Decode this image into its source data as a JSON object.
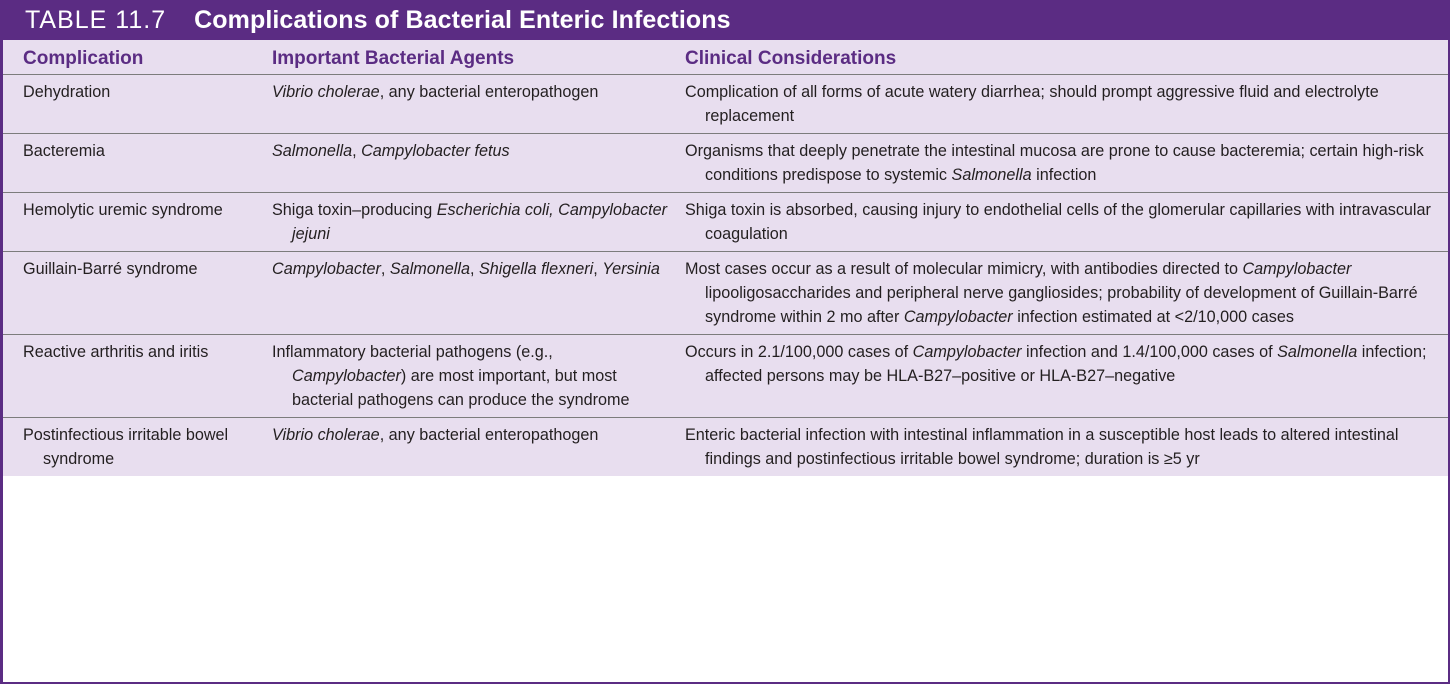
{
  "table": {
    "label": "TABLE 11.7",
    "title": "Complications of Bacterial Enteric Infections",
    "colors": {
      "accent": "#5b2c83",
      "row_bg": "#e8deef",
      "rule": "#7c7c7c"
    },
    "headers": [
      "Complication",
      "Important Bacterial Agents",
      "Clinical Considerations"
    ],
    "rows": [
      {
        "complication": "Dehydration",
        "agents": [
          {
            "t": "Vibrio cholerae",
            "i": true
          },
          {
            "t": ", any bacterial enteropathogen",
            "i": false
          }
        ],
        "considerations": [
          {
            "t": "Complication of all forms of acute watery diarrhea; should prompt aggressive fluid and electrolyte replacement",
            "i": false
          }
        ]
      },
      {
        "complication": "Bacteremia",
        "agents": [
          {
            "t": "Salmonella",
            "i": true
          },
          {
            "t": ", ",
            "i": false
          },
          {
            "t": "Campylobacter fetus",
            "i": true
          }
        ],
        "considerations": [
          {
            "t": "Organisms that deeply penetrate the intestinal mucosa are prone to cause bacteremia; certain high-risk conditions predispose to systemic ",
            "i": false
          },
          {
            "t": "Salmonella",
            "i": true
          },
          {
            "t": " infection",
            "i": false
          }
        ]
      },
      {
        "complication": "Hemolytic uremic syndrome",
        "agents": [
          {
            "t": "Shiga toxin–producing ",
            "i": false
          },
          {
            "t": "Escherichia coli, Campylobacter jejuni",
            "i": true
          }
        ],
        "considerations": [
          {
            "t": "Shiga toxin is absorbed, causing injury to endothelial cells of the glomerular capillaries with intravascular coagulation",
            "i": false
          }
        ]
      },
      {
        "complication": "Guillain-Barré syndrome",
        "agents": [
          {
            "t": "Campylobacter",
            "i": true
          },
          {
            "t": ", ",
            "i": false
          },
          {
            "t": "Salmonella",
            "i": true
          },
          {
            "t": ", ",
            "i": false
          },
          {
            "t": "Shigella flexneri",
            "i": true
          },
          {
            "t": ", ",
            "i": false
          },
          {
            "t": "Yersinia",
            "i": true
          }
        ],
        "considerations": [
          {
            "t": "Most cases occur as a result of molecular mimicry, with antibodies directed to ",
            "i": false
          },
          {
            "t": "Campylobacter",
            "i": true
          },
          {
            "t": " lipooligosaccharides and peripheral nerve gangliosides; probability of development of Guillain-Barré syndrome within 2 mo after ",
            "i": false
          },
          {
            "t": "Campylobacter",
            "i": true
          },
          {
            "t": " infection estimated at <2/10,000 cases",
            "i": false
          }
        ]
      },
      {
        "complication": "Reactive arthritis and iritis",
        "agents": [
          {
            "t": "Inflammatory bacterial pathogens (e.g., ",
            "i": false
          },
          {
            "t": "Campylobacter",
            "i": true
          },
          {
            "t": ") are most important, but most bacterial pathogens can produce the syndrome",
            "i": false
          }
        ],
        "considerations": [
          {
            "t": "Occurs in 2.1/100,000 cases of ",
            "i": false
          },
          {
            "t": "Campylobacter",
            "i": true
          },
          {
            "t": " infection and 1.4/100,000 cases of ",
            "i": false
          },
          {
            "t": "Salmonella",
            "i": true
          },
          {
            "t": " infection; affected persons may be HLA-B27–positive or HLA-B27–negative",
            "i": false
          }
        ]
      },
      {
        "complication": "Postinfectious irritable bowel syndrome",
        "agents": [
          {
            "t": "Vibrio cholerae",
            "i": true
          },
          {
            "t": ", any bacterial enteropathogen",
            "i": false
          }
        ],
        "considerations": [
          {
            "t": "Enteric bacterial infection with intestinal inflammation in a susceptible host leads to altered intestinal findings and postinfectious irritable bowel syndrome; duration is ≥5 yr",
            "i": false
          }
        ]
      }
    ]
  }
}
